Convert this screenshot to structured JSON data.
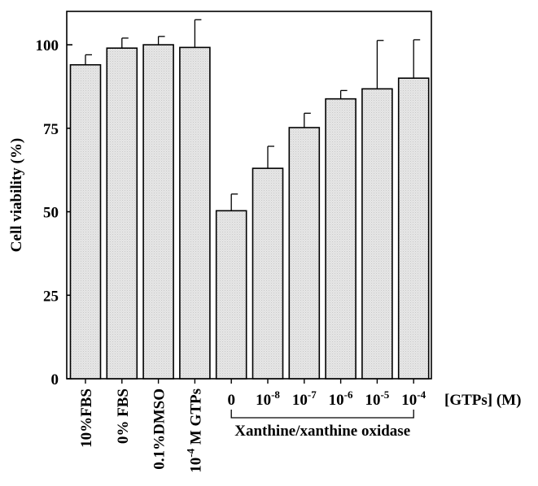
{
  "chart_data": {
    "type": "bar",
    "ylabel": "Cell viability (%)",
    "ylim": [
      0,
      110
    ],
    "yticks": [
      0,
      25,
      50,
      75,
      100
    ],
    "categories": [
      "10%FBS",
      "0% FBS",
      "0.1%DMSO",
      "10^-4 M GTPs",
      "0",
      "10^-8",
      "10^-7",
      "10^-6",
      "10^-5",
      "10^-4"
    ],
    "category_labels": [
      {
        "base": "10%FBS",
        "exp": "",
        "tail": ""
      },
      {
        "base": "0% FBS",
        "exp": "",
        "tail": ""
      },
      {
        "base": "0.1%DMSO",
        "exp": "",
        "tail": ""
      },
      {
        "base": "10",
        "exp": "-4",
        "tail": " M GTPs"
      },
      {
        "base": "0",
        "exp": "",
        "tail": ""
      },
      {
        "base": "10",
        "exp": "-8",
        "tail": ""
      },
      {
        "base": "10",
        "exp": "-7",
        "tail": ""
      },
      {
        "base": "10",
        "exp": "-6",
        "tail": ""
      },
      {
        "base": "10",
        "exp": "-5",
        "tail": ""
      },
      {
        "base": "10",
        "exp": "-4",
        "tail": ""
      }
    ],
    "values": [
      94,
      99,
      100,
      99.2,
      50.3,
      63,
      75.2,
      83.8,
      86.8,
      90
    ],
    "errors": [
      3,
      3,
      2.5,
      8.3,
      5,
      6.6,
      4.3,
      2.5,
      14.5,
      11.5
    ],
    "annotations": {
      "concentration_label": "[GTPs] (M)",
      "group_label": "Xanthine/xanthine oxidase"
    },
    "grid": false,
    "legend": "none"
  },
  "colors": {
    "bar_fill": "#e6e6e6",
    "bar_stroke": "#000000"
  }
}
